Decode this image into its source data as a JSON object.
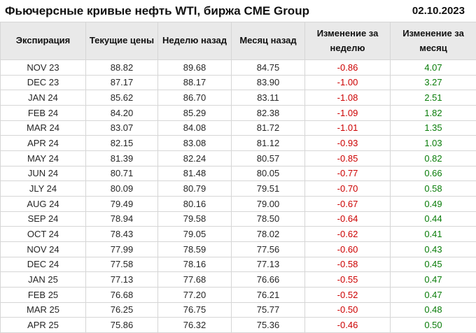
{
  "title": "Фьючерсные кривые нефть WTI, биржа CME Group",
  "date": "02.10.2023",
  "colors": {
    "negative": "#cc0000",
    "positive": "#0a7d0a",
    "header_bg": "#e9e9e9",
    "border": "#d6d6d6",
    "outer_border": "#bfbfbf",
    "text": "#262626"
  },
  "chart_data": {
    "type": "table",
    "title": "Фьючерсные кривые нефть WTI, биржа CME Group",
    "date_label": "02.10.2023",
    "columns": [
      "Экспирация",
      "Текущие цены",
      "Неделю назад",
      "Месяц назад",
      "Изменение за неделю",
      "Изменение за месяц"
    ],
    "rows": [
      [
        "NOV 23",
        "88.82",
        "89.68",
        "84.75",
        "-0.86",
        "4.07"
      ],
      [
        "DEC 23",
        "87.17",
        "88.17",
        "83.90",
        "-1.00",
        "3.27"
      ],
      [
        "JAN 24",
        "85.62",
        "86.70",
        "83.11",
        "-1.08",
        "2.51"
      ],
      [
        "FEB 24",
        "84.20",
        "85.29",
        "82.38",
        "-1.09",
        "1.82"
      ],
      [
        "MAR 24",
        "83.07",
        "84.08",
        "81.72",
        "-1.01",
        "1.35"
      ],
      [
        "APR 24",
        "82.15",
        "83.08",
        "81.12",
        "-0.93",
        "1.03"
      ],
      [
        "MAY 24",
        "81.39",
        "82.24",
        "80.57",
        "-0.85",
        "0.82"
      ],
      [
        "JUN 24",
        "80.71",
        "81.48",
        "80.05",
        "-0.77",
        "0.66"
      ],
      [
        "JLY 24",
        "80.09",
        "80.79",
        "79.51",
        "-0.70",
        "0.58"
      ],
      [
        "AUG 24",
        "79.49",
        "80.16",
        "79.00",
        "-0.67",
        "0.49"
      ],
      [
        "SEP 24",
        "78.94",
        "79.58",
        "78.50",
        "-0.64",
        "0.44"
      ],
      [
        "OCT 24",
        "78.43",
        "79.05",
        "78.02",
        "-0.62",
        "0.41"
      ],
      [
        "NOV 24",
        "77.99",
        "78.59",
        "77.56",
        "-0.60",
        "0.43"
      ],
      [
        "DEC 24",
        "77.58",
        "78.16",
        "77.13",
        "-0.58",
        "0.45"
      ],
      [
        "JAN 25",
        "77.13",
        "77.68",
        "76.66",
        "-0.55",
        "0.47"
      ],
      [
        "FEB 25",
        "76.68",
        "77.20",
        "76.21",
        "-0.52",
        "0.47"
      ],
      [
        "MAR 25",
        "76.25",
        "76.75",
        "75.77",
        "-0.50",
        "0.48"
      ],
      [
        "APR 25",
        "75.86",
        "76.32",
        "75.36",
        "-0.46",
        "0.50"
      ]
    ],
    "value_coloring": "column 4 (week change) negative red, column 5 (month change) positive green",
    "legend_position": "none",
    "grid": "full cell borders"
  }
}
